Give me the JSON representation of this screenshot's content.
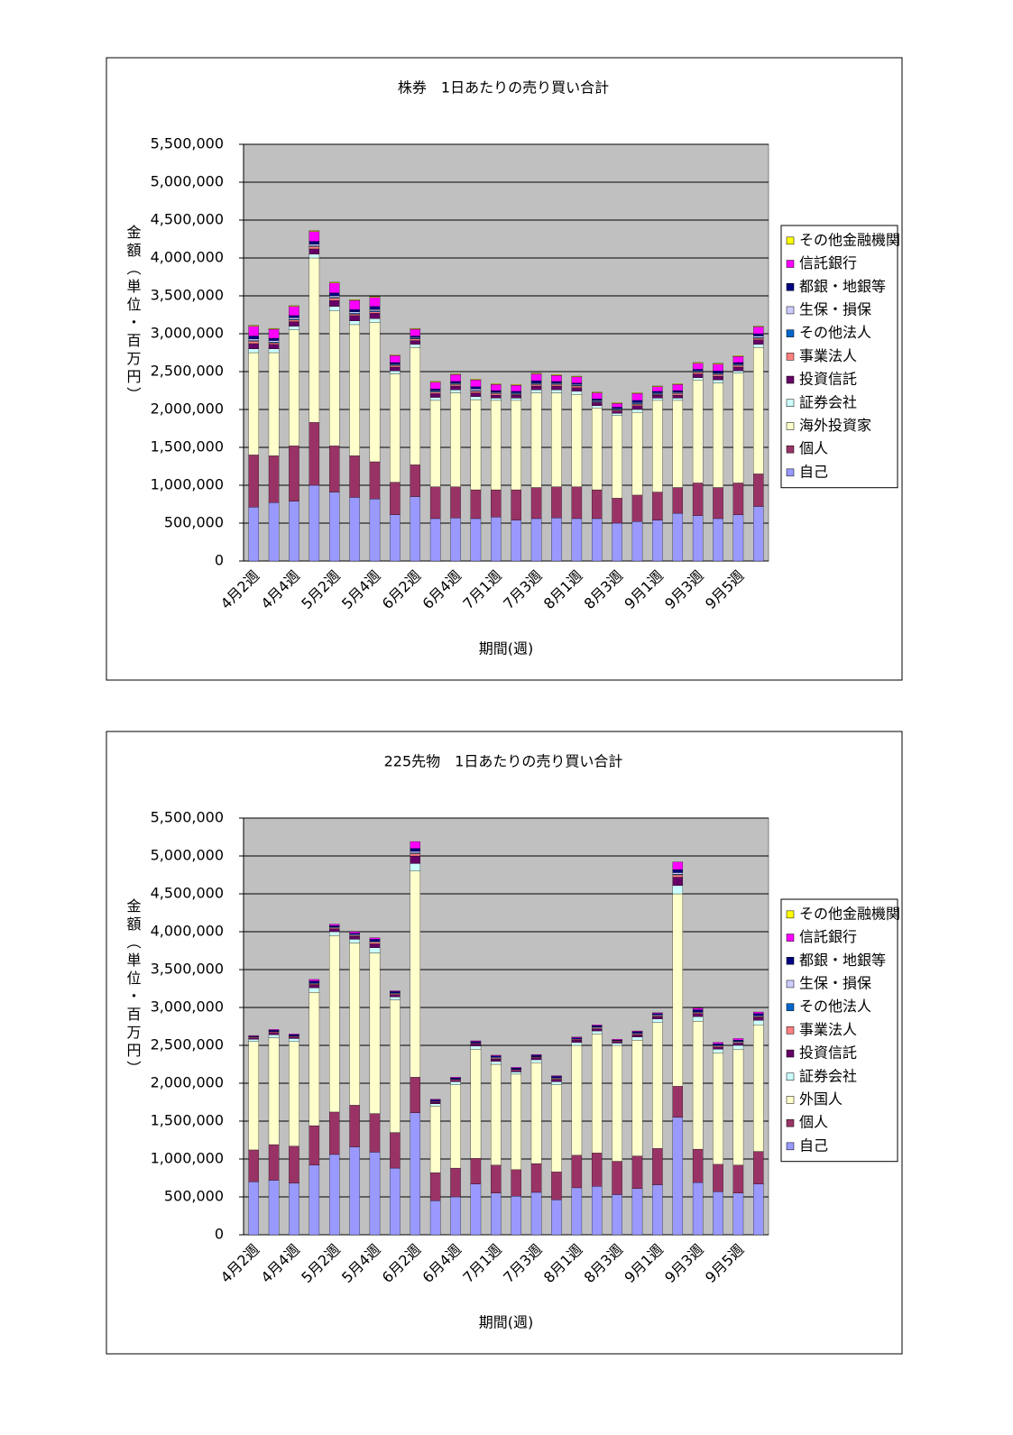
{
  "chart_data": [
    {
      "type": "bar",
      "stacked": true,
      "title": "株券　1日あたりの売り買い合計",
      "x_label": "期間(週)",
      "y_label": "金額（単位・百万円）",
      "categories": [
        "4月2週",
        null,
        "4月4週",
        null,
        "5月2週",
        null,
        "5月4週",
        null,
        "6月2週",
        null,
        "6月4週",
        null,
        "7月1週",
        null,
        "7月3週",
        null,
        "8月1週",
        null,
        "8月3週",
        null,
        "9月1週",
        null,
        "9月3週",
        null,
        "9月5週",
        null
      ],
      "ylim": [
        0,
        5500000
      ],
      "yticks": [
        0,
        {
          "value": 500000,
          "label": "500,000"
        },
        {
          "value": 1000000,
          "label": "1,000,000"
        },
        {
          "value": 1500000,
          "label": "1,500,000"
        },
        {
          "value": 2000000,
          "label": "2,000,000"
        },
        {
          "value": 2500000,
          "label": "2,500,000"
        },
        {
          "value": 3000000,
          "label": "3,000,000"
        },
        {
          "value": 3500000,
          "label": "3,500,000"
        },
        {
          "value": 4000000,
          "label": "4,000,000"
        },
        {
          "value": 4500000,
          "label": "4,500,000"
        },
        {
          "value": 5000000,
          "label": "5,000,000"
        },
        {
          "value": 5500000,
          "label": "5,500,000"
        }
      ],
      "grid": true,
      "legend": "right",
      "series": [
        {
          "name": "自己",
          "color": "#9999ff",
          "values": [
            710000,
            770000,
            790000,
            1000000,
            910000,
            840000,
            820000,
            610000,
            850000,
            560000,
            570000,
            560000,
            580000,
            540000,
            560000,
            570000,
            560000,
            560000,
            500000,
            520000,
            540000,
            630000,
            600000,
            560000,
            610000,
            720000
          ]
        },
        {
          "name": "個人",
          "color": "#993366",
          "values": [
            690000,
            620000,
            730000,
            830000,
            610000,
            550000,
            490000,
            430000,
            420000,
            420000,
            410000,
            380000,
            360000,
            400000,
            410000,
            410000,
            420000,
            380000,
            330000,
            350000,
            370000,
            340000,
            430000,
            410000,
            420000,
            430000
          ]
        },
        {
          "name": "海外投資家",
          "color": "#ffffcc",
          "values": [
            1350000,
            1360000,
            1530000,
            2170000,
            1780000,
            1730000,
            1840000,
            1430000,
            1550000,
            1140000,
            1240000,
            1190000,
            1180000,
            1180000,
            1250000,
            1240000,
            1220000,
            1080000,
            1090000,
            1090000,
            1210000,
            1150000,
            1360000,
            1380000,
            1450000,
            1670000
          ]
        },
        {
          "name": "証券会社",
          "color": "#ccffff",
          "values": [
            50000,
            50000,
            50000,
            50000,
            60000,
            50000,
            50000,
            40000,
            40000,
            40000,
            40000,
            40000,
            30000,
            30000,
            40000,
            40000,
            40000,
            30000,
            30000,
            40000,
            30000,
            30000,
            30000,
            40000,
            30000,
            40000
          ]
        },
        {
          "name": "投資信託",
          "color": "#660066",
          "values": [
            70000,
            60000,
            60000,
            70000,
            80000,
            70000,
            70000,
            50000,
            50000,
            50000,
            50000,
            50000,
            40000,
            40000,
            50000,
            50000,
            50000,
            40000,
            30000,
            50000,
            40000,
            40000,
            50000,
            50000,
            50000,
            60000
          ]
        },
        {
          "name": "事業法人",
          "color": "#ff8080",
          "values": [
            30000,
            20000,
            20000,
            30000,
            30000,
            20000,
            20000,
            20000,
            20000,
            20000,
            20000,
            20000,
            20000,
            10000,
            20000,
            20000,
            20000,
            10000,
            10000,
            20000,
            10000,
            20000,
            20000,
            20000,
            20000,
            20000
          ]
        },
        {
          "name": "その他法人",
          "color": "#0066cc",
          "values": [
            10000,
            10000,
            10000,
            10000,
            10000,
            10000,
            10000,
            10000,
            10000,
            10000,
            10000,
            10000,
            10000,
            10000,
            10000,
            10000,
            10000,
            10000,
            10000,
            10000,
            10000,
            10000,
            10000,
            10000,
            10000,
            10000
          ]
        },
        {
          "name": "生保・損保",
          "color": "#ccccff",
          "values": [
            20000,
            20000,
            20000,
            20000,
            20000,
            20000,
            20000,
            10000,
            10000,
            10000,
            10000,
            20000,
            10000,
            10000,
            10000,
            10000,
            10000,
            10000,
            10000,
            10000,
            10000,
            10000,
            10000,
            10000,
            10000,
            20000
          ]
        },
        {
          "name": "都銀・地銀等",
          "color": "#000080",
          "values": [
            40000,
            30000,
            30000,
            40000,
            40000,
            30000,
            40000,
            20000,
            20000,
            20000,
            20000,
            30000,
            20000,
            20000,
            30000,
            20000,
            20000,
            20000,
            20000,
            30000,
            20000,
            20000,
            20000,
            30000,
            20000,
            30000
          ]
        },
        {
          "name": "信託銀行",
          "color": "#ff00ff",
          "values": [
            130000,
            120000,
            120000,
            130000,
            130000,
            120000,
            120000,
            90000,
            90000,
            90000,
            90000,
            90000,
            80000,
            80000,
            90000,
            80000,
            80000,
            80000,
            50000,
            90000,
            60000,
            80000,
            80000,
            90000,
            80000,
            90000
          ]
        },
        {
          "name": "その他金融機関",
          "color": "#ffff00",
          "values": [
            10000,
            10000,
            10000,
            10000,
            10000,
            10000,
            10000,
            10000,
            10000,
            10000,
            10000,
            10000,
            10000,
            10000,
            10000,
            10000,
            10000,
            10000,
            10000,
            10000,
            10000,
            10000,
            10000,
            10000,
            10000,
            10000
          ]
        }
      ]
    },
    {
      "type": "bar",
      "stacked": true,
      "title": "225先物　1日あたりの売り買い合計",
      "x_label": "期間(週)",
      "y_label": "金額（単位・百万円）",
      "categories": [
        "4月2週",
        null,
        "4月4週",
        null,
        "5月2週",
        null,
        "5月4週",
        null,
        "6月2週",
        null,
        "6月4週",
        null,
        "7月1週",
        null,
        "7月3週",
        null,
        "8月1週",
        null,
        "8月3週",
        null,
        "9月1週",
        null,
        "9月3週",
        null,
        "9月5週",
        null
      ],
      "ylim": [
        0,
        5500000
      ],
      "yticks": [
        0,
        {
          "value": 500000,
          "label": "500,000"
        },
        {
          "value": 1000000,
          "label": "1,000,000"
        },
        {
          "value": 1500000,
          "label": "1,500,000"
        },
        {
          "value": 2000000,
          "label": "2,000,000"
        },
        {
          "value": 2500000,
          "label": "2,500,000"
        },
        {
          "value": 3000000,
          "label": "3,000,000"
        },
        {
          "value": 3500000,
          "label": "3,500,000"
        },
        {
          "value": 4000000,
          "label": "4,000,000"
        },
        {
          "value": 4500000,
          "label": "4,500,000"
        },
        {
          "value": 5000000,
          "label": "5,000,000"
        },
        {
          "value": 5500000,
          "label": "5,500,000"
        }
      ],
      "grid": true,
      "legend": "right",
      "series": [
        {
          "name": "自己",
          "color": "#9999ff",
          "values": [
            700000,
            720000,
            680000,
            920000,
            1060000,
            1160000,
            1090000,
            880000,
            1610000,
            450000,
            500000,
            670000,
            550000,
            510000,
            560000,
            460000,
            620000,
            640000,
            530000,
            610000,
            660000,
            1550000,
            690000,
            570000,
            550000,
            670000
          ]
        },
        {
          "name": "個人",
          "color": "#993366",
          "values": [
            420000,
            470000,
            490000,
            520000,
            560000,
            550000,
            510000,
            470000,
            470000,
            370000,
            380000,
            340000,
            370000,
            350000,
            380000,
            370000,
            430000,
            440000,
            440000,
            430000,
            480000,
            410000,
            440000,
            360000,
            370000,
            430000
          ]
        },
        {
          "name": "外国人",
          "color": "#ffffcc",
          "values": [
            1430000,
            1410000,
            1380000,
            1760000,
            2330000,
            2140000,
            2120000,
            1750000,
            2720000,
            880000,
            1100000,
            1440000,
            1330000,
            1260000,
            1330000,
            1150000,
            1450000,
            1570000,
            1530000,
            1530000,
            1660000,
            2540000,
            1690000,
            1470000,
            1530000,
            1670000
          ]
        },
        {
          "name": "証券会社",
          "color": "#ccffff",
          "values": [
            30000,
            40000,
            40000,
            60000,
            50000,
            50000,
            70000,
            40000,
            100000,
            30000,
            40000,
            40000,
            40000,
            30000,
            40000,
            40000,
            40000,
            40000,
            30000,
            40000,
            50000,
            110000,
            60000,
            50000,
            50000,
            60000
          ]
        },
        {
          "name": "投資信託",
          "color": "#660066",
          "values": [
            20000,
            30000,
            20000,
            40000,
            40000,
            40000,
            50000,
            30000,
            100000,
            20000,
            20000,
            30000,
            30000,
            20000,
            30000,
            30000,
            30000,
            30000,
            20000,
            30000,
            30000,
            110000,
            40000,
            30000,
            30000,
            40000
          ]
        },
        {
          "name": "事業法人",
          "color": "#ff8080",
          "values": [
            10000,
            10000,
            10000,
            10000,
            10000,
            10000,
            20000,
            10000,
            30000,
            10000,
            10000,
            10000,
            10000,
            10000,
            10000,
            10000,
            10000,
            10000,
            10000,
            10000,
            10000,
            30000,
            10000,
            10000,
            10000,
            10000
          ]
        },
        {
          "name": "その他法人",
          "color": "#0066cc",
          "values": [
            0,
            0,
            0,
            0,
            0,
            0,
            0,
            0,
            10000,
            0,
            0,
            0,
            0,
            0,
            0,
            0,
            0,
            0,
            0,
            0,
            0,
            10000,
            0,
            0,
            0,
            0
          ]
        },
        {
          "name": "生保・損保",
          "color": "#ccccff",
          "values": [
            0,
            0,
            0,
            10000,
            10000,
            10000,
            10000,
            10000,
            20000,
            0,
            0,
            0,
            10000,
            0,
            0,
            10000,
            0,
            10000,
            0,
            10000,
            10000,
            20000,
            10000,
            10000,
            10000,
            10000
          ]
        },
        {
          "name": "都銀・地銀等",
          "color": "#000080",
          "values": [
            10000,
            20000,
            20000,
            30000,
            20000,
            20000,
            30000,
            20000,
            40000,
            20000,
            20000,
            20000,
            20000,
            20000,
            20000,
            20000,
            20000,
            20000,
            10000,
            20000,
            20000,
            40000,
            30000,
            20000,
            20000,
            30000
          ]
        },
        {
          "name": "信託銀行",
          "color": "#ff00ff",
          "values": [
            10000,
            10000,
            10000,
            20000,
            20000,
            20000,
            20000,
            10000,
            90000,
            10000,
            10000,
            10000,
            10000,
            10000,
            10000,
            10000,
            10000,
            10000,
            10000,
            10000,
            10000,
            100000,
            20000,
            20000,
            20000,
            20000
          ]
        },
        {
          "name": "その他金融機関",
          "color": "#ffff00",
          "values": [
            0,
            0,
            0,
            0,
            0,
            0,
            0,
            0,
            0,
            0,
            0,
            0,
            0,
            0,
            0,
            0,
            0,
            0,
            0,
            0,
            0,
            0,
            0,
            0,
            0,
            0
          ]
        }
      ]
    }
  ]
}
